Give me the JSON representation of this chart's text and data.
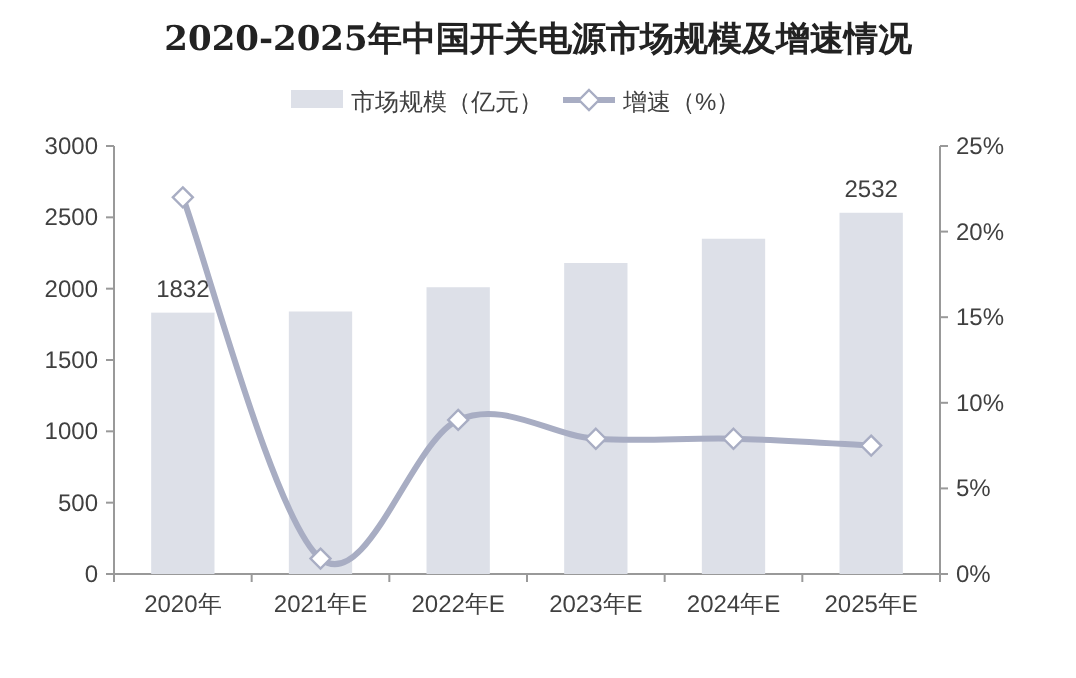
{
  "chart_data": {
    "type": "bar",
    "title": "2020-2025年中国开关电源市场规模及增速情况",
    "categories": [
      "2020年",
      "2021年E",
      "2022年E",
      "2023年E",
      "2024年E",
      "2025年E"
    ],
    "series": [
      {
        "name": "市场规模（亿元）",
        "color": "#dde0e8",
        "values": [
          1832,
          1840,
          2010,
          2180,
          2350,
          2532
        ],
        "value_labels": [
          "1832",
          null,
          null,
          null,
          null,
          "2532"
        ]
      },
      {
        "name": "增速（%）",
        "type": "line",
        "axis": "y2",
        "color": "#a8adc3",
        "marker": "diamond",
        "values": [
          22,
          0.9,
          9,
          7.9,
          7.9,
          7.5
        ]
      }
    ],
    "ylim": [
      0,
      3000
    ],
    "yticks": [
      0,
      500,
      1000,
      1500,
      2000,
      2500,
      3000
    ],
    "y2lim": [
      0,
      25
    ],
    "y2ticks": [
      {
        "value": 0,
        "label": "0%"
      },
      {
        "value": 5,
        "label": "5%"
      },
      {
        "value": 10,
        "label": "10%"
      },
      {
        "value": 15,
        "label": "15%"
      },
      {
        "value": 20,
        "label": "20%"
      },
      {
        "value": 25,
        "label": "25%"
      }
    ],
    "legend": "top"
  }
}
